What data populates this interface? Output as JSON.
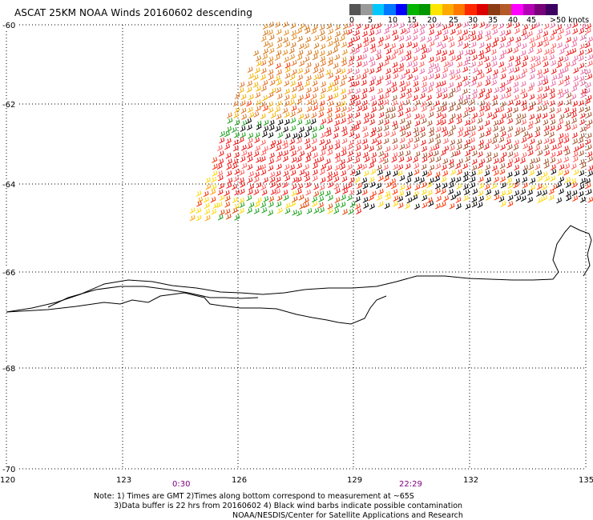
{
  "title": "ASCAT 25KM NOAA Winds 20160602 descending",
  "legend": {
    "colors": [
      "#555555",
      "#999999",
      "#00c8ff",
      "#0078ff",
      "#0000ff",
      "#00b400",
      "#009600",
      "#ffe600",
      "#ffaa00",
      "#ff7800",
      "#ff2800",
      "#dc0000",
      "#8c3c14",
      "#b45a28",
      "#ff00ff",
      "#b400b4",
      "#780078",
      "#3c0060"
    ],
    "labels": [
      "0",
      "5",
      "10",
      "15",
      "20",
      "25",
      "30",
      "35",
      "40",
      "45",
      ">50 knots"
    ]
  },
  "axes": {
    "lon_ticks": [
      "120",
      "123",
      "126",
      "129",
      "132",
      "135"
    ],
    "lat_ticks": [
      "-60",
      "-62",
      "-64",
      "-66",
      "-68",
      "-70"
    ]
  },
  "times": {
    "t1": "0:30",
    "t2": "22:29"
  },
  "notes": {
    "line1": "Note: 1) Times are GMT 2)Times along bottom correspond to measurement at ~65S",
    "line2": "3)Data buffer is 22 hrs from 20160602 4) Black wind barbs indicate possible contamination",
    "line3": "NOAA/NESDIS/Center for Satellite Applications and Research"
  }
}
